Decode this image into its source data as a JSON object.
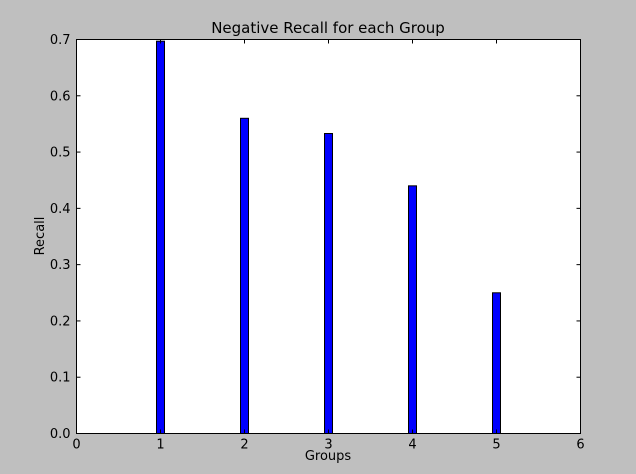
{
  "chart_data": {
    "type": "bar",
    "title": "Negative Recall for each Group",
    "xlabel": "Groups",
    "ylabel": "Recall",
    "x": [
      1,
      2,
      3,
      4,
      5
    ],
    "values": [
      0.697,
      0.56,
      0.533,
      0.44,
      0.25
    ],
    "xlim": [
      0,
      6
    ],
    "ylim": [
      0,
      0.7
    ],
    "xticks": [
      0,
      1,
      2,
      3,
      4,
      5,
      6
    ],
    "xtick_labels": [
      "0",
      "1",
      "2",
      "3",
      "4",
      "5",
      "6"
    ],
    "yticks": [
      0,
      0.1,
      0.2,
      0.3,
      0.4,
      0.5,
      0.6,
      0.7
    ],
    "ytick_labels": [
      "0.0",
      "0.1",
      "0.2",
      "0.3",
      "0.4",
      "0.5",
      "0.6",
      "0.7"
    ],
    "grid": false,
    "legend": false,
    "colors": {
      "figure_background": "#bfbfbf",
      "plot_background": "#ffffff",
      "bar_fill": "#0000ff",
      "bar_edge": "#000000"
    }
  }
}
